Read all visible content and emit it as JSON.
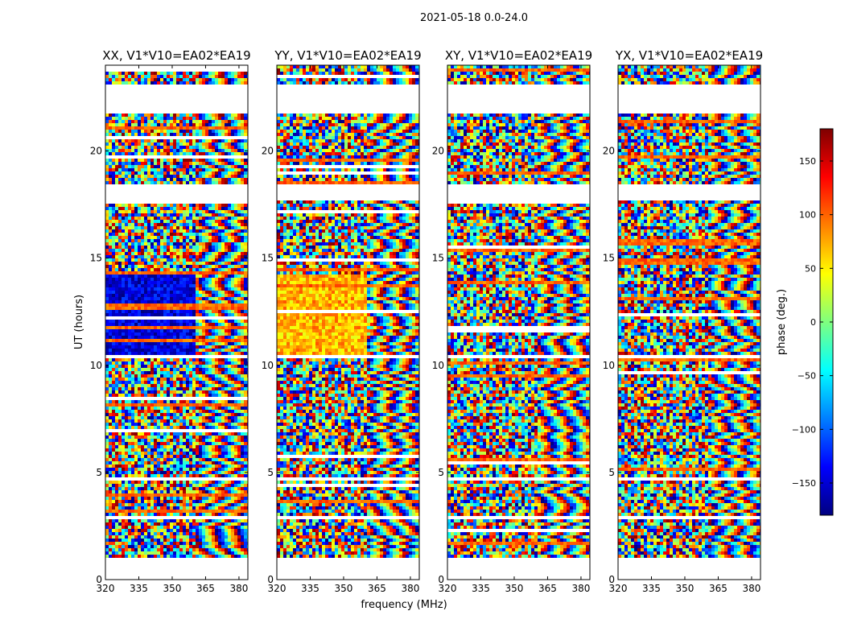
{
  "chart_data": {
    "type": "heatmap",
    "title": "2021-05-18 0.0-24.0",
    "xlabel": "frequency (MHz)",
    "ylabel": "UT (hours)",
    "xlim": [
      320,
      384
    ],
    "ylim": [
      0,
      24
    ],
    "xticks": [
      320,
      335,
      350,
      365,
      380
    ],
    "yticks": [
      0,
      5,
      10,
      15,
      20
    ],
    "panels": [
      {
        "title": "XX, V1*V10=EA02*EA19"
      },
      {
        "title": "YY, V1*V10=EA02*EA19"
      },
      {
        "title": "XY, V1*V10=EA02*EA19"
      },
      {
        "title": "YX, V1*V10=EA02*EA19"
      }
    ],
    "colorbar": {
      "label": "phase (deg.)",
      "range": [
        -180,
        180
      ],
      "ticks": [
        -150,
        -100,
        -50,
        0,
        50,
        100,
        150
      ],
      "tick_labels": [
        "−150",
        "−100",
        "−50",
        "0",
        "50",
        "100",
        "150"
      ],
      "colormap": "jet",
      "colors": [
        "#00007f",
        "#0000ff",
        "#007fff",
        "#00ffff",
        "#7fff7f",
        "#ffff00",
        "#ff7f00",
        "#ff0000",
        "#7f0000"
      ]
    },
    "data_ranges_hours": [
      [
        1.0,
        2.75
      ],
      [
        2.9,
        4.6
      ],
      [
        4.75,
        10.3
      ],
      [
        10.5,
        17.7
      ],
      [
        18.5,
        21.7
      ],
      [
        23.1,
        24.0
      ]
    ],
    "flagged_gaps_hours": [
      [
        0.0,
        1.0
      ],
      [
        21.7,
        23.1
      ]
    ]
  }
}
